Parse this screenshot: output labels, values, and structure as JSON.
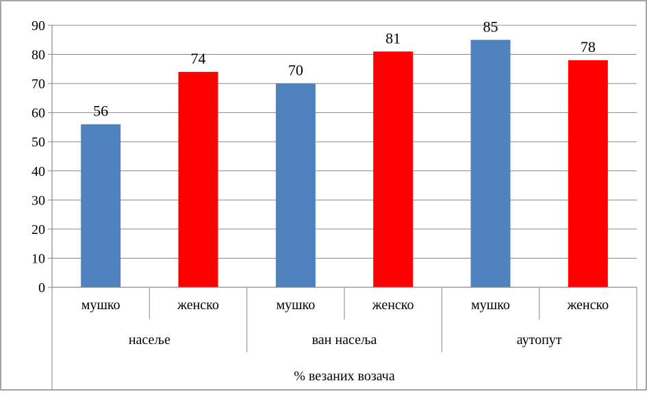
{
  "chart_data": {
    "type": "bar",
    "title": "% везаних возача",
    "groups": [
      {
        "name": "насеље",
        "categories": [
          "мушко",
          "женско"
        ],
        "values": [
          56,
          74
        ]
      },
      {
        "name": "ван насеља",
        "categories": [
          "мушко",
          "женско"
        ],
        "values": [
          70,
          81
        ]
      },
      {
        "name": "аутопут",
        "categories": [
          "мушко",
          "женско"
        ],
        "values": [
          85,
          78
        ]
      }
    ],
    "categories": [
      "мушко",
      "женско",
      "мушко",
      "женско",
      "мушко",
      "женско"
    ],
    "values": [
      56,
      74,
      70,
      81,
      85,
      78
    ],
    "data_labels": [
      "56",
      "74",
      "70",
      "81",
      "85",
      "78"
    ],
    "bar_colors": [
      "#4f81bd",
      "#ff0000",
      "#4f81bd",
      "#ff0000",
      "#4f81bd",
      "#ff0000"
    ],
    "ylim": [
      0,
      90
    ],
    "yticks": [
      "0",
      "10",
      "20",
      "30",
      "40",
      "50",
      "60",
      "70",
      "80",
      "90"
    ],
    "grid": true,
    "legend": "none",
    "gridline_color": "#868686",
    "frame_color": "#868686"
  }
}
